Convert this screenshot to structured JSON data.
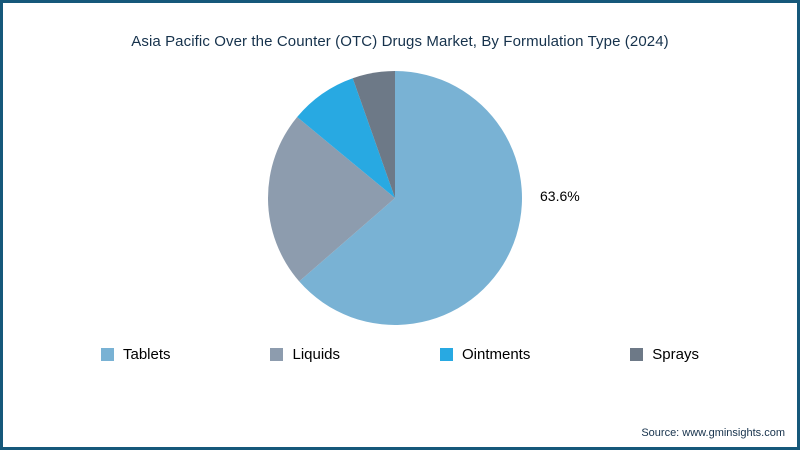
{
  "page": {
    "source": "Source: www.gminsights.com"
  },
  "chart_data": {
    "type": "pie",
    "title": "Asia Pacific Over the Counter (OTC) Drugs Market, By Formulation Type (2024)",
    "categories": [
      "Tablets",
      "Liquids",
      "Ointments",
      "Sprays"
    ],
    "values": [
      63.6,
      22.4,
      8.6,
      5.4
    ],
    "colors": [
      "#79b2d4",
      "#8d9cae",
      "#28a9e2",
      "#6d7987"
    ],
    "slice_labels": [
      "63.6%",
      "",
      "",
      ""
    ],
    "start_angle_deg": 0,
    "direction": "clockwise",
    "legend_position": "bottom",
    "label_color": "#000000"
  }
}
